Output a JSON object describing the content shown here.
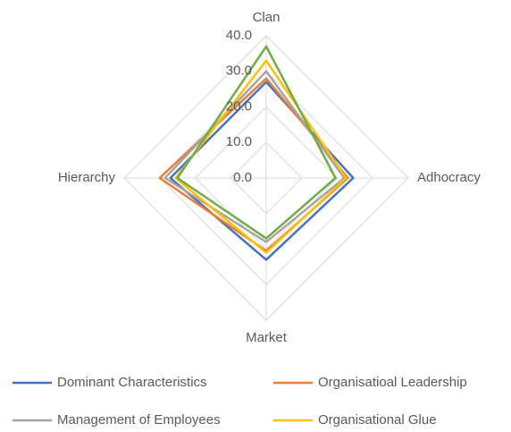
{
  "chart_data": {
    "type": "radar",
    "categories": [
      "Clan",
      "Adhocracy",
      "Market",
      "Hierarchy"
    ],
    "ylim": [
      0,
      40
    ],
    "yticks": [
      {
        "value": 0,
        "label": "0.0"
      },
      {
        "value": 10,
        "label": "10.0"
      },
      {
        "value": 20,
        "label": "20.0"
      },
      {
        "value": 30,
        "label": "30.0"
      },
      {
        "value": 40,
        "label": "40.0"
      }
    ],
    "grid": true,
    "legend": "bottom",
    "series": [
      {
        "name": "Dominant Characteristics",
        "color": "#4472c4",
        "values": [
          27,
          24.5,
          23,
          27
        ]
      },
      {
        "name": "Organisatioal Leadership",
        "color": "#ed7d31",
        "values": [
          28,
          23,
          20.5,
          30
        ]
      },
      {
        "name": "Management of Employees",
        "color": "#a5a5a5",
        "values": [
          30,
          22,
          18,
          28.5
        ]
      },
      {
        "name": "Organisational Glue",
        "color": "#ffc000",
        "values": [
          33,
          22.5,
          21,
          25.5
        ]
      },
      {
        "color": "#70ad47",
        "values": [
          37,
          19.5,
          17,
          25
        ]
      }
    ]
  }
}
